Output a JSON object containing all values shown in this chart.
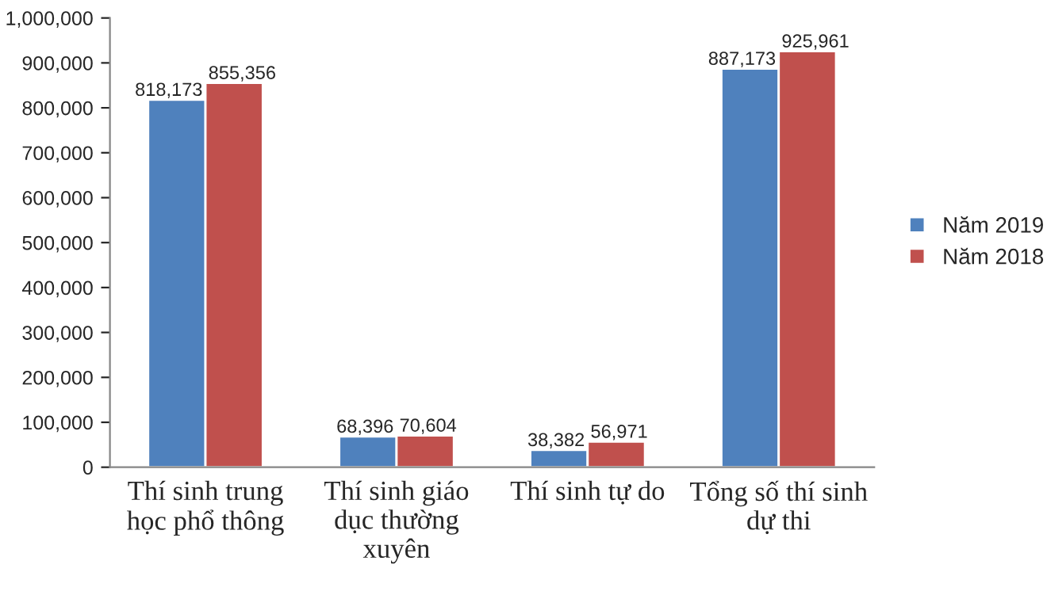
{
  "chart_data": {
    "type": "bar",
    "categories": [
      "Thí sinh trung học phổ thông",
      "Thí sinh giáo dục thường xuyên",
      "Thí sinh tự do",
      "Tổng số thí sinh dự thi"
    ],
    "series": [
      {
        "name": "Năm 2019",
        "color": "#4f81bd",
        "values": [
          818173,
          68396,
          38382,
          887173
        ],
        "value_labels": [
          "818,173",
          "68,396",
          "38,382",
          "887,173"
        ]
      },
      {
        "name": "Năm 2018",
        "color": "#c0504d",
        "values": [
          855356,
          70604,
          56971,
          925961
        ],
        "value_labels": [
          "855,356",
          "70,604",
          "56,971",
          "925,961"
        ]
      }
    ],
    "ylim": [
      0,
      1000000
    ],
    "yticks": [
      {
        "value": 0,
        "label": "0"
      },
      {
        "value": 100000,
        "label": "100,000"
      },
      {
        "value": 200000,
        "label": "200,000"
      },
      {
        "value": 300000,
        "label": "300,000"
      },
      {
        "value": 400000,
        "label": "400,000"
      },
      {
        "value": 500000,
        "label": "500,000"
      },
      {
        "value": 600000,
        "label": "600,000"
      },
      {
        "value": 700000,
        "label": "700,000"
      },
      {
        "value": 800000,
        "label": "800,000"
      },
      {
        "value": 900000,
        "label": "900,000"
      },
      {
        "value": 1000000,
        "label": "1,000,000"
      }
    ],
    "legend": "right",
    "grid": false
  }
}
